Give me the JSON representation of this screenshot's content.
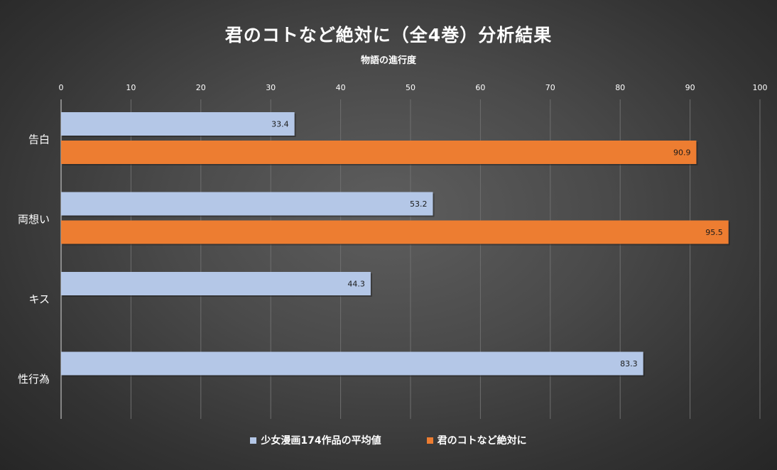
{
  "chart_data": {
    "type": "bar",
    "orientation": "horizontal",
    "title": "君のコトなど絶対に（全4巻）分析結果",
    "subtitle": "物語の進行度",
    "categories": [
      "告白",
      "両想い",
      "キス",
      "性行為"
    ],
    "xlim": [
      0,
      100
    ],
    "xticks": [
      0,
      10,
      20,
      30,
      40,
      50,
      60,
      70,
      80,
      90,
      100
    ],
    "grid": true,
    "legend_position": "bottom",
    "series": [
      {
        "name": "少女漫画174作品の平均値",
        "color": "#b4c7e7",
        "values": [
          33.4,
          53.2,
          44.3,
          83.3
        ],
        "labels": [
          "33.4",
          "53.2",
          "44.3",
          "83.3"
        ]
      },
      {
        "name": "君のコトなど絶対に",
        "color": "#ed7d31",
        "values": [
          90.9,
          95.5,
          null,
          null
        ],
        "labels": [
          "90.9",
          "95.5",
          null,
          null
        ]
      }
    ]
  }
}
